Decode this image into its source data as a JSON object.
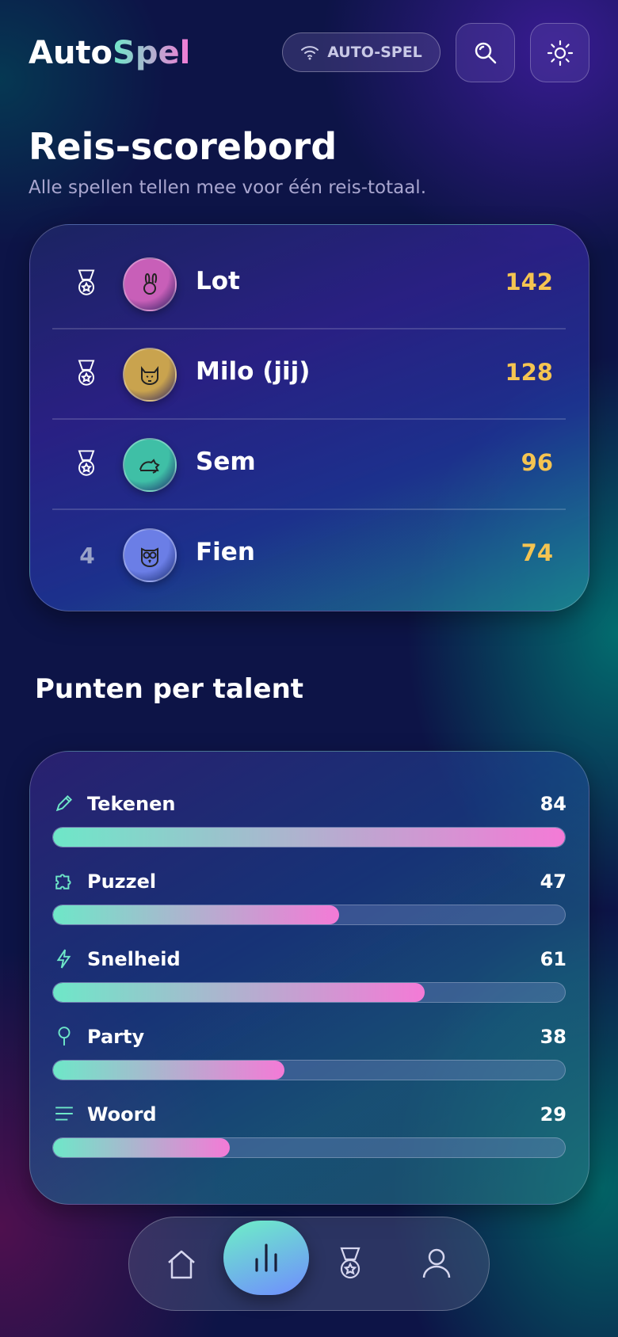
{
  "header": {
    "brand_first": "Auto",
    "brand_second": "Spel",
    "mode_pill": "AUTO-SPEL"
  },
  "title": "Reis-scorebord",
  "subtitle": "Alle spellen tellen mee voor één reis-totaal.",
  "leaderboard": [
    {
      "name": "Lot",
      "score": 142,
      "color": "#c85fb8"
    },
    {
      "name": "Milo (jij)",
      "score": 128,
      "color": "#c9a34e"
    },
    {
      "name": "Sem",
      "score": 96,
      "color": "#3fbfa6"
    },
    {
      "rank": 4,
      "name": "Fien",
      "score": 74,
      "color": "#6b7ee6"
    }
  ],
  "talents": {
    "title": "Punten per talent",
    "items": [
      {
        "name": "Tekenen",
        "value": 84
      },
      {
        "name": "Puzzel",
        "value": 47
      },
      {
        "name": "Snelheid",
        "value": 61
      },
      {
        "name": "Party",
        "value": 38
      },
      {
        "name": "Woord",
        "value": 29
      }
    ]
  }
}
